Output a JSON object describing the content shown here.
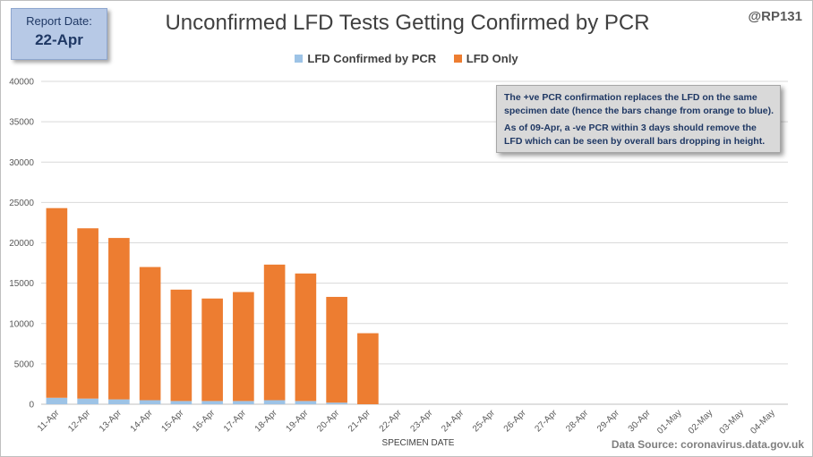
{
  "report": {
    "label": "Report Date:",
    "date": "22-Apr"
  },
  "handle": "@RP131",
  "source": "Data Source: coronavirus.data.gov.uk",
  "note": {
    "line1": "The +ve PCR confirmation replaces the LFD on the same specimen date (hence the bars change from orange to blue).",
    "line2": "As of 09-Apr, a -ve PCR within 3 days should remove the LFD which can be seen by overall bars dropping in height."
  },
  "colors": {
    "confirmed": "#9dc3e6",
    "lfd_only": "#ed7d31",
    "grid": "#d9d9d9"
  },
  "chart_data": {
    "type": "bar",
    "stacked": true,
    "title": "Unconfirmed LFD Tests Getting Confirmed by PCR",
    "xlabel": "SPECIMEN DATE",
    "ylabel": "",
    "ylim": [
      0,
      40000
    ],
    "yticks": [
      0,
      5000,
      10000,
      15000,
      20000,
      25000,
      30000,
      35000,
      40000
    ],
    "legend_position": "top",
    "grid": true,
    "categories": [
      "11-Apr",
      "12-Apr",
      "13-Apr",
      "14-Apr",
      "15-Apr",
      "16-Apr",
      "17-Apr",
      "18-Apr",
      "19-Apr",
      "20-Apr",
      "21-Apr",
      "22-Apr",
      "23-Apr",
      "24-Apr",
      "25-Apr",
      "26-Apr",
      "27-Apr",
      "28-Apr",
      "29-Apr",
      "30-Apr",
      "01-May",
      "02-May",
      "03-May",
      "04-May"
    ],
    "series": [
      {
        "name": "LFD Confirmed by PCR",
        "values": [
          800,
          700,
          600,
          500,
          400,
          400,
          400,
          500,
          400,
          200,
          0,
          0,
          0,
          0,
          0,
          0,
          0,
          0,
          0,
          0,
          0,
          0,
          0,
          0
        ]
      },
      {
        "name": "LFD Only",
        "values": [
          23500,
          21100,
          20000,
          16500,
          13800,
          12700,
          13500,
          16800,
          15800,
          13100,
          8800,
          0,
          0,
          0,
          0,
          0,
          0,
          0,
          0,
          0,
          0,
          0,
          0,
          0
        ]
      }
    ]
  }
}
